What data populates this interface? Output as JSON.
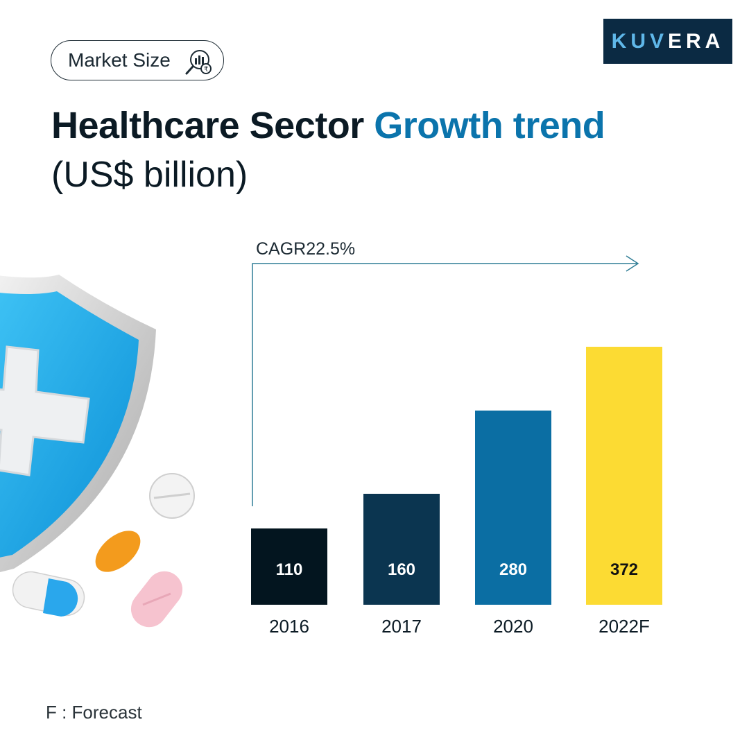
{
  "tag": {
    "label": "Market Size",
    "icon": "magnifier-chart-icon"
  },
  "logo": {
    "part1": "KUV",
    "part2": "ERA",
    "accent_color": "#5fb7e9",
    "background": "#0b2a43"
  },
  "heading": {
    "title_dark": "Healthcare Sector",
    "title_accent": "Growth trend",
    "subtitle": "(US$ billion)",
    "accent_color": "#0b74ac"
  },
  "chart_data": {
    "type": "bar",
    "title": "Healthcare Sector Growth trend",
    "ylabel": "US$ billion",
    "xlabel": "",
    "categories": [
      "2016",
      "2017",
      "2020",
      "2022F"
    ],
    "values": [
      110,
      160,
      280,
      372
    ],
    "value_labels": [
      "110",
      "160",
      "280",
      "372"
    ],
    "colors": [
      "#03151f",
      "#0b3550",
      "#0b6ea3",
      "#fcdb33"
    ],
    "label_colors": [
      "#ffffff",
      "#ffffff",
      "#ffffff",
      "#111111"
    ],
    "ylim": [
      0,
      372
    ],
    "annotation": "CAGR22.5%",
    "grid": false,
    "legend": "none"
  },
  "footnote": "F : Forecast"
}
